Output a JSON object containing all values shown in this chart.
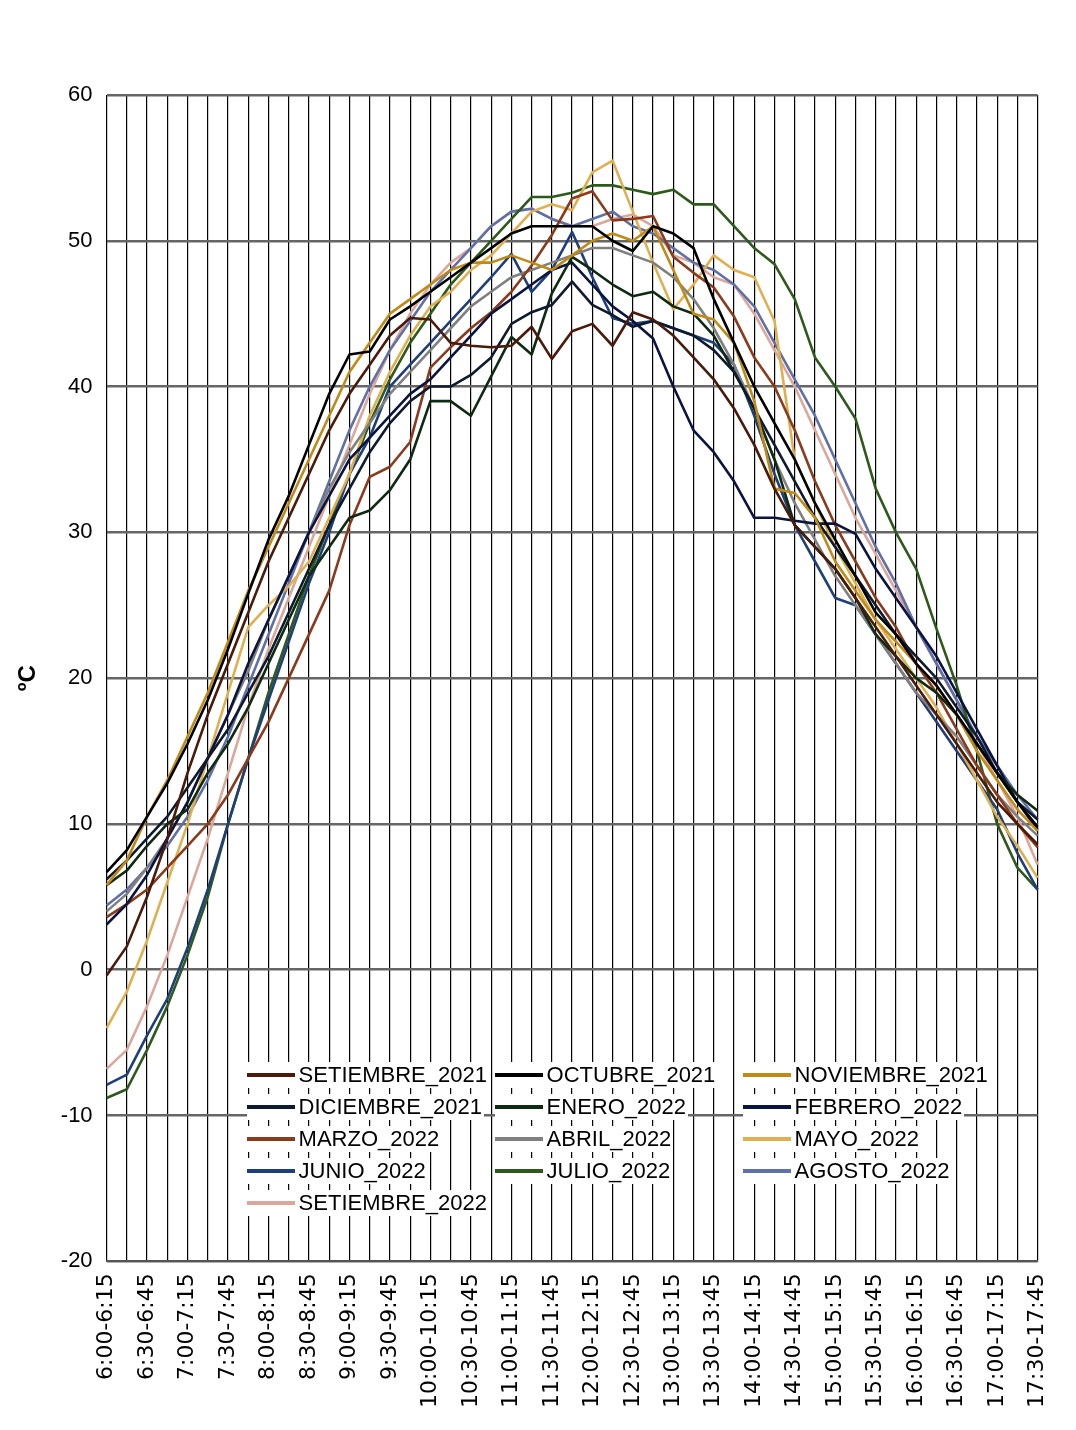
{
  "chart_data": {
    "type": "line",
    "ylabel": "ºC",
    "categories": [
      "6:00-6:15",
      null,
      "6:30-6:45",
      null,
      "7:00-7:15",
      null,
      "7:30-7:45",
      null,
      "8:00-8:15",
      null,
      "8:30-8:45",
      null,
      "9:00-9:15",
      null,
      "9:30-9:45",
      null,
      "10:00-10:15",
      null,
      "10:30-10:45",
      null,
      "11:00-11:15",
      null,
      "11:30-11:45",
      null,
      "12:00-12:15",
      null,
      "12:30-12:45",
      null,
      "13:00-13:15",
      null,
      "13:30-13:45",
      null,
      "14:00-14:15",
      null,
      "14:30-14:45",
      null,
      "15:00-15:15",
      null,
      "15:30-15:45",
      null,
      "16:00-16:15",
      null,
      "16:30-16:45",
      null,
      "17:00-17:15",
      null,
      "17:30-17:45"
    ],
    "ylim": [
      -20,
      60
    ],
    "yticks": [
      -20,
      -10,
      0,
      10,
      20,
      30,
      40,
      50,
      60
    ],
    "grid": true,
    "legend": "bottom",
    "marker": "none",
    "line_style": "solid",
    "series": [
      {
        "name": "SETIEMBRE_2021",
        "color": "#4a1a0a",
        "values": [
          -0.4,
          1.6,
          5,
          9,
          13.5,
          17.5,
          21,
          24.5,
          28,
          31,
          34,
          37,
          39.5,
          41.5,
          43.5,
          44.7,
          44.6,
          43,
          42.8,
          42.7,
          42.8,
          44.1,
          41.9,
          43.8,
          44.3,
          42.8,
          45.1,
          44.6,
          43.5,
          42,
          40.5,
          38.5,
          36,
          33,
          30.5,
          29,
          27.5,
          25.5,
          23.5,
          21.5,
          19.5,
          17.5,
          15.5,
          13.5,
          11.5,
          10,
          8.6
        ]
      },
      {
        "name": "OCTUBRE_2021",
        "color": "#000000",
        "values": [
          6.7,
          8.2,
          10.5,
          12.8,
          15.5,
          18.5,
          22,
          25.8,
          29.5,
          32.5,
          36,
          39.5,
          42.2,
          42.4,
          44.6,
          45.5,
          46.5,
          47.5,
          48.5,
          49.5,
          50.5,
          51,
          51,
          51,
          51,
          50,
          49.3,
          51,
          50.5,
          49.5,
          46,
          43,
          40,
          37.5,
          35,
          32,
          29.5,
          27,
          24.5,
          23,
          21,
          19.5,
          17.5,
          15.5,
          13.5,
          11.5,
          9.8
        ]
      },
      {
        "name": "NOVIEMBRE_2021",
        "color": "#c08a14",
        "values": [
          5.8,
          7.5,
          10.5,
          13,
          16,
          19,
          22.5,
          26,
          29,
          32,
          35,
          38,
          41,
          43,
          45,
          46,
          47,
          48,
          48.5,
          48.5,
          49,
          48.5,
          48,
          49,
          50,
          50.5,
          50,
          51,
          48,
          45,
          44.6,
          43,
          39,
          33,
          32.7,
          31,
          28,
          26,
          24,
          22.5,
          21,
          19.5,
          17.5,
          15,
          13,
          11,
          9.5
        ]
      },
      {
        "name": "DICIEMBRE_2021",
        "color": "#0f1a2e",
        "values": [
          6.2,
          7.5,
          9,
          10.5,
          12.5,
          14.5,
          16.5,
          19,
          21.5,
          24.5,
          27.5,
          30.5,
          33,
          35.5,
          37.5,
          39,
          40,
          40,
          40.8,
          42,
          44.3,
          45.1,
          45.6,
          47.2,
          45.6,
          44.9,
          44.1,
          44.5,
          44,
          43.5,
          42.5,
          41,
          38.5,
          36,
          33.5,
          31,
          29,
          27,
          25,
          23,
          21.5,
          20,
          18,
          16,
          13.5,
          11.5,
          10.3
        ]
      },
      {
        "name": "ENERO_2022",
        "color": "#0e2a12",
        "values": [
          5.8,
          6.8,
          8.5,
          10,
          11,
          13.5,
          15.5,
          18,
          21,
          24,
          27,
          29,
          31,
          31.5,
          32.9,
          35,
          39,
          39,
          38,
          40.7,
          43.4,
          42.2,
          46.4,
          48.9,
          48,
          47,
          46.2,
          46.5,
          45.5,
          45,
          43.5,
          41,
          38.5,
          35,
          30.5,
          29,
          27.5,
          25.5,
          23,
          21.5,
          20,
          19,
          17.5,
          15.5,
          13.5,
          12,
          10.9
        ]
      },
      {
        "name": "FEBRERO_2022",
        "color": "#0b1440",
        "values": [
          3.1,
          4.5,
          6.5,
          9,
          11.5,
          14.5,
          17.5,
          21,
          24,
          27,
          30,
          32.5,
          35,
          36.5,
          38,
          39.5,
          40.5,
          42,
          43.5,
          45,
          46,
          47,
          48,
          48.5,
          47,
          45.5,
          44.5,
          43.3,
          40,
          37,
          35.5,
          33.5,
          31,
          31,
          30.8,
          30.6,
          30.6,
          29.9,
          27.5,
          25.5,
          23.5,
          21.5,
          19,
          16.5,
          14,
          11.5,
          9.6
        ]
      },
      {
        "name": "MARZO_2022",
        "color": "#8b3a1c",
        "values": [
          3.6,
          4.5,
          5.5,
          7,
          8.5,
          10,
          12,
          14.5,
          17,
          20,
          23,
          26,
          30.5,
          33.8,
          34.5,
          36.2,
          41.3,
          42.7,
          44,
          45.1,
          46.5,
          48.3,
          50.4,
          52.9,
          53.4,
          51.4,
          51.5,
          51.7,
          48.9,
          47.8,
          46.8,
          44.8,
          42,
          40,
          37,
          33.5,
          30.5,
          28,
          25.5,
          23.5,
          21,
          19,
          16.5,
          14,
          12,
          10,
          8.4
        ]
      },
      {
        "name": "ABRIL_2022",
        "color": "#808080",
        "values": [
          4,
          5.2,
          7,
          9,
          11.5,
          14.5,
          17.5,
          20.5,
          24,
          27,
          30,
          33,
          35.5,
          37.5,
          39.5,
          41,
          42.5,
          44,
          45.5,
          46.5,
          47.5,
          48,
          48.5,
          49,
          49.5,
          49.5,
          49,
          48.5,
          47.5,
          46,
          44,
          41.5,
          38.5,
          35,
          32,
          29.5,
          27,
          25,
          23,
          21,
          19,
          17.5,
          16,
          14,
          12,
          10.5,
          9.2
        ]
      },
      {
        "name": "MAYO_2022",
        "color": "#e0b050",
        "values": [
          -4,
          -1.5,
          2,
          6,
          10,
          14.5,
          19,
          23.5,
          25,
          26.3,
          28,
          31,
          34,
          38,
          41,
          43.5,
          45.5,
          46.5,
          48,
          49,
          50.5,
          52,
          52.5,
          52.1,
          54.7,
          55.5,
          52,
          48.5,
          45.3,
          47,
          49,
          48,
          47.5,
          44.5,
          35,
          32,
          29,
          26.5,
          24,
          22,
          20,
          18,
          15.5,
          13,
          10.5,
          8.5,
          6.3
        ]
      },
      {
        "name": "JUNIO_2022",
        "color": "#1f3f7a",
        "values": [
          -7.9,
          -7.2,
          -4.5,
          -2,
          1.5,
          5.5,
          10,
          14.5,
          18.5,
          22.5,
          26.5,
          30,
          34,
          36.5,
          40,
          41.5,
          43,
          44.5,
          46,
          47.5,
          49.1,
          46.5,
          48,
          50.6,
          47.5,
          44.7,
          44.3,
          44.5,
          44,
          43.5,
          43,
          41.5,
          38,
          34,
          30.5,
          28,
          25.5,
          25,
          23,
          21,
          19,
          17,
          15,
          13,
          11,
          8,
          5.5
        ]
      },
      {
        "name": "JULIO_2022",
        "color": "#2d5a1b",
        "values": [
          -8.8,
          -8.2,
          -5.5,
          -2.5,
          1,
          5,
          10,
          14.5,
          19,
          23,
          27,
          30.5,
          34,
          37.5,
          40.5,
          43,
          45,
          47,
          48.5,
          50,
          51.5,
          53,
          53,
          53.3,
          53.8,
          53.8,
          53.5,
          53.2,
          53.5,
          52.5,
          52.5,
          51,
          49.5,
          48.4,
          46,
          42,
          40,
          37.8,
          33,
          30,
          27.5,
          23.4,
          19.5,
          15,
          10,
          7,
          5.5
        ]
      },
      {
        "name": "AGOSTO_2022",
        "color": "#5f70a8",
        "values": [
          4.4,
          5.5,
          7,
          8.5,
          10.5,
          13,
          16,
          19.5,
          23,
          26.5,
          30,
          33.5,
          37,
          40,
          42.5,
          44.5,
          46.5,
          48,
          49.5,
          51,
          52,
          52.2,
          51.5,
          51,
          51.5,
          52,
          51,
          50.5,
          49.5,
          48.5,
          48,
          47,
          45.5,
          43,
          40.5,
          38,
          35,
          32,
          29,
          26.5,
          23.5,
          21,
          18.5,
          16,
          14,
          12,
          10.3
        ]
      },
      {
        "name": "SETIEMBRE_2022",
        "color": "#dba79a",
        "values": [
          -6.8,
          -5.5,
          -2.5,
          1,
          5,
          9,
          13.5,
          18,
          22,
          25.5,
          29,
          32.5,
          36,
          39.5,
          42.5,
          45,
          47,
          48.5,
          49.5,
          51,
          52,
          52.2,
          51.5,
          51,
          51,
          51.5,
          51.8,
          51,
          49,
          48.5,
          47.5,
          47,
          45,
          42.5,
          40,
          37,
          34,
          31,
          28.5,
          26,
          23.5,
          21,
          18.5,
          15.5,
          13,
          10.5,
          7.2
        ]
      }
    ]
  }
}
